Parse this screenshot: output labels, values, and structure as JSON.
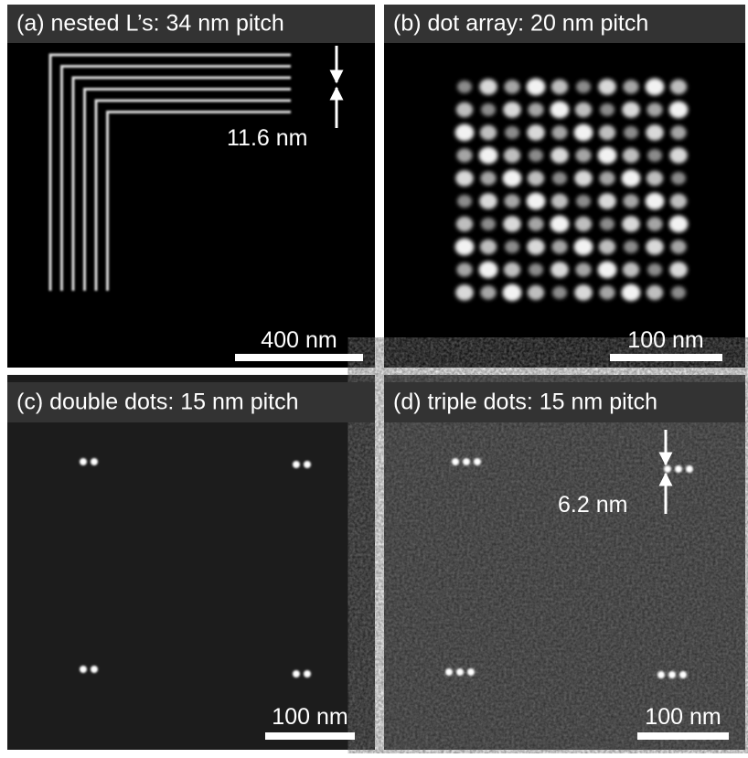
{
  "panels": [
    {
      "title": "(a) nested L’s: 34 nm pitch",
      "scale_bar": "400 nm",
      "annotation": "11.6 nm"
    },
    {
      "title": "(b) dot array: 20 nm pitch",
      "scale_bar": "100 nm"
    },
    {
      "title": "(c) double dots: 15 nm pitch",
      "scale_bar": "100 nm"
    },
    {
      "title": "(d) triple dots: 15 nm pitch",
      "scale_bar": "100 nm",
      "annotation": "6.2 nm"
    }
  ]
}
